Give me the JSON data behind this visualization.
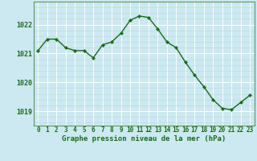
{
  "x": [
    0,
    1,
    2,
    3,
    4,
    5,
    6,
    7,
    8,
    9,
    10,
    11,
    12,
    13,
    14,
    15,
    16,
    17,
    18,
    19,
    20,
    21,
    22,
    23
  ],
  "y": [
    1021.1,
    1021.5,
    1021.5,
    1021.2,
    1021.1,
    1021.1,
    1020.85,
    1021.3,
    1021.4,
    1021.7,
    1022.15,
    1022.3,
    1022.25,
    1021.85,
    1021.4,
    1021.2,
    1020.7,
    1020.25,
    1019.85,
    1019.4,
    1019.1,
    1019.05,
    1019.3,
    1019.55
  ],
  "line_color": "#1a6b1a",
  "marker": "D",
  "marker_size": 2.2,
  "bg_color": "#cce8f0",
  "grid_major_color": "#ffffff",
  "grid_minor_color": "#b8d8e4",
  "xlabel": "Graphe pression niveau de la mer (hPa)",
  "xlabel_color": "#1a6b1a",
  "xlabel_fontsize": 6.5,
  "tick_color": "#1a6b1a",
  "tick_fontsize": 5.5,
  "ylim": [
    1018.5,
    1022.8
  ],
  "yticks": [
    1019,
    1020,
    1021,
    1022
  ],
  "xlim": [
    -0.5,
    23.5
  ],
  "spine_color": "#5a9a5a",
  "linewidth": 1.0
}
